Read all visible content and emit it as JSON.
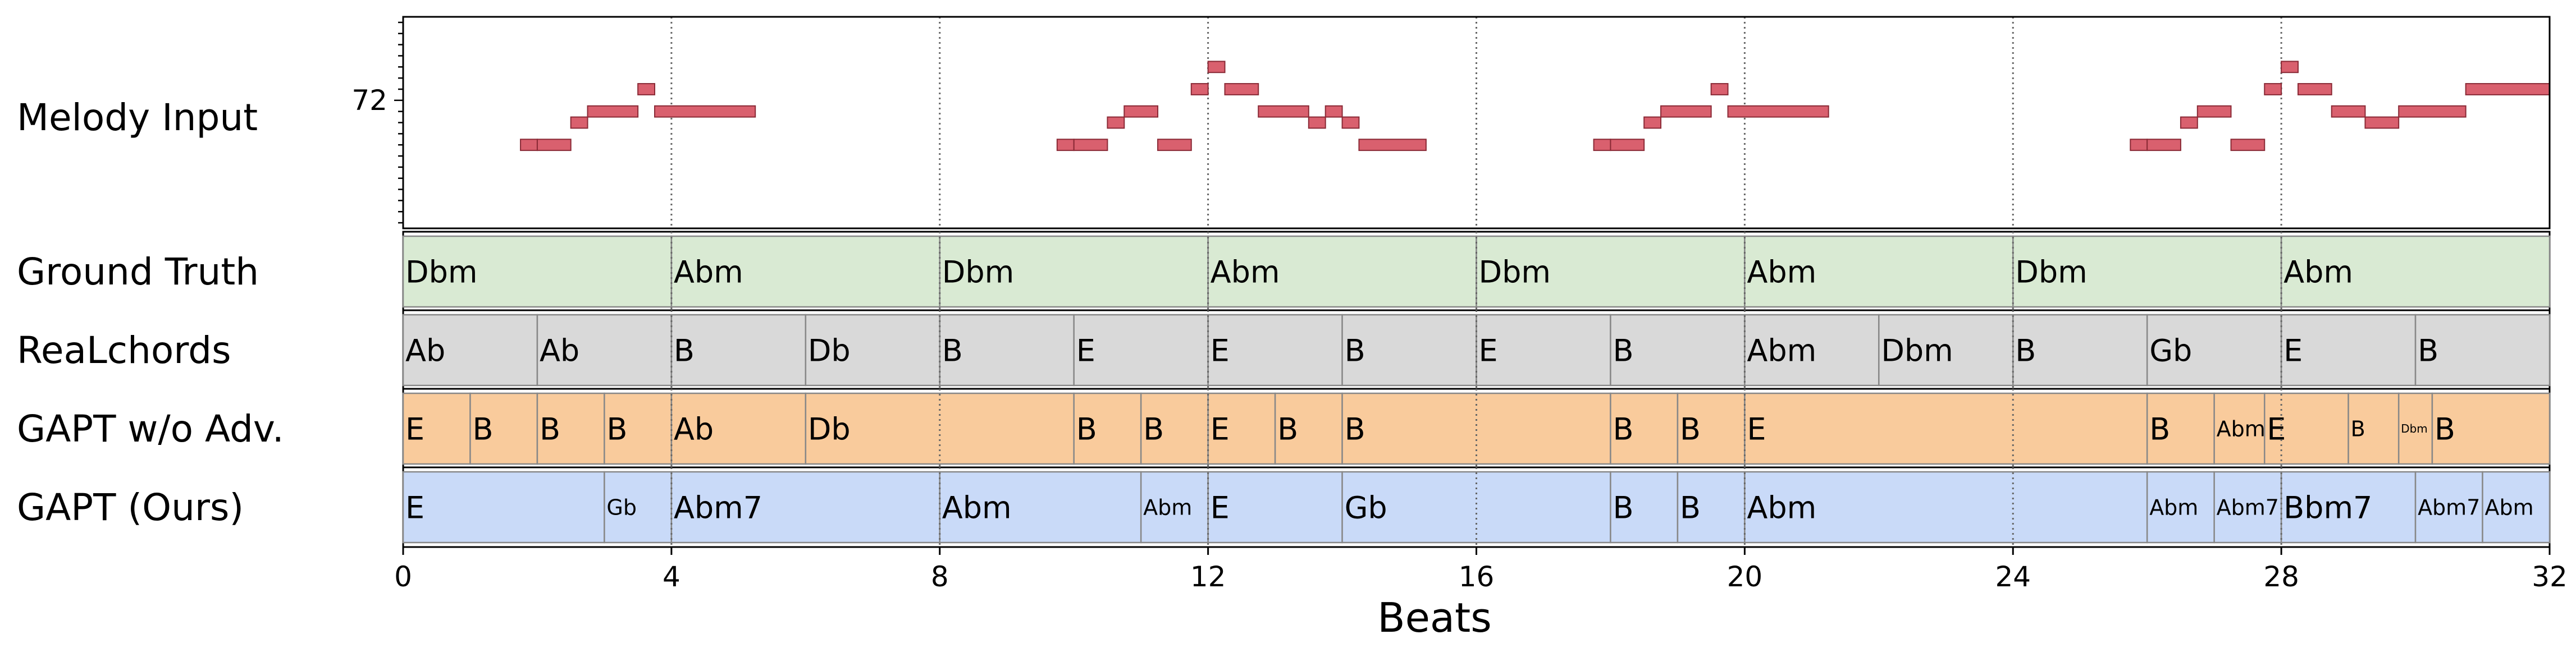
{
  "chart_data": {
    "type": "piano-roll-chord-timeline",
    "xlabel": "Beats",
    "xlim": [
      0,
      32
    ],
    "xticks": [
      0,
      4,
      8,
      12,
      16,
      20,
      24,
      28,
      32
    ],
    "xtick_labels": [
      "0",
      "4",
      "8",
      "12",
      "16",
      "20",
      "24",
      "28",
      "32"
    ],
    "grid": "dotted vertical lines every 4 beats",
    "melody": {
      "label": "Melody Input",
      "ytick": 72,
      "ytick_label": "72",
      "ylim": [
        60.5,
        79.5
      ],
      "color": "#d9606e",
      "notes": [
        {
          "start": 1.75,
          "end": 2.0,
          "pitch": 68
        },
        {
          "start": 2.0,
          "end": 2.5,
          "pitch": 68
        },
        {
          "start": 2.5,
          "end": 2.75,
          "pitch": 70
        },
        {
          "start": 2.75,
          "end": 3.5,
          "pitch": 71
        },
        {
          "start": 3.5,
          "end": 3.75,
          "pitch": 73
        },
        {
          "start": 3.75,
          "end": 5.25,
          "pitch": 71
        },
        {
          "start": 9.75,
          "end": 10.0,
          "pitch": 68
        },
        {
          "start": 10.0,
          "end": 10.5,
          "pitch": 68
        },
        {
          "start": 10.5,
          "end": 10.75,
          "pitch": 70
        },
        {
          "start": 10.75,
          "end": 11.25,
          "pitch": 71
        },
        {
          "start": 11.25,
          "end": 11.75,
          "pitch": 68
        },
        {
          "start": 11.75,
          "end": 12.0,
          "pitch": 73
        },
        {
          "start": 12.0,
          "end": 12.25,
          "pitch": 75
        },
        {
          "start": 12.25,
          "end": 12.75,
          "pitch": 73
        },
        {
          "start": 12.75,
          "end": 13.5,
          "pitch": 71
        },
        {
          "start": 13.5,
          "end": 13.75,
          "pitch": 70
        },
        {
          "start": 13.75,
          "end": 14.0,
          "pitch": 71
        },
        {
          "start": 14.0,
          "end": 14.25,
          "pitch": 70
        },
        {
          "start": 14.25,
          "end": 15.25,
          "pitch": 68
        },
        {
          "start": 17.75,
          "end": 18.0,
          "pitch": 68
        },
        {
          "start": 18.0,
          "end": 18.5,
          "pitch": 68
        },
        {
          "start": 18.5,
          "end": 18.75,
          "pitch": 70
        },
        {
          "start": 18.75,
          "end": 19.5,
          "pitch": 71
        },
        {
          "start": 19.5,
          "end": 19.75,
          "pitch": 73
        },
        {
          "start": 19.75,
          "end": 21.25,
          "pitch": 71
        },
        {
          "start": 25.75,
          "end": 26.0,
          "pitch": 68
        },
        {
          "start": 26.0,
          "end": 26.5,
          "pitch": 68
        },
        {
          "start": 26.5,
          "end": 26.75,
          "pitch": 70
        },
        {
          "start": 26.75,
          "end": 27.25,
          "pitch": 71
        },
        {
          "start": 27.25,
          "end": 27.75,
          "pitch": 68
        },
        {
          "start": 27.75,
          "end": 28.0,
          "pitch": 73
        },
        {
          "start": 28.0,
          "end": 28.25,
          "pitch": 75
        },
        {
          "start": 28.25,
          "end": 28.75,
          "pitch": 73
        },
        {
          "start": 28.75,
          "end": 29.25,
          "pitch": 71
        },
        {
          "start": 29.25,
          "end": 29.75,
          "pitch": 70
        },
        {
          "start": 29.75,
          "end": 30.75,
          "pitch": 71
        },
        {
          "start": 30.75,
          "end": 32.0,
          "pitch": 73
        }
      ]
    },
    "tracks": [
      {
        "name": "Ground Truth",
        "color": "#d9ead3",
        "chords": [
          {
            "start": 0,
            "end": 4,
            "label": "Dbm"
          },
          {
            "start": 4,
            "end": 8,
            "label": "Abm"
          },
          {
            "start": 8,
            "end": 12,
            "label": "Dbm"
          },
          {
            "start": 12,
            "end": 16,
            "label": "Abm"
          },
          {
            "start": 16,
            "end": 20,
            "label": "Dbm"
          },
          {
            "start": 20,
            "end": 24,
            "label": "Abm"
          },
          {
            "start": 24,
            "end": 28,
            "label": "Dbm"
          },
          {
            "start": 28,
            "end": 32,
            "label": "Abm"
          }
        ]
      },
      {
        "name": "ReaLchords",
        "color": "#d9d9d9",
        "chords": [
          {
            "start": 0,
            "end": 2,
            "label": "Ab"
          },
          {
            "start": 2,
            "end": 4,
            "label": "Ab"
          },
          {
            "start": 4,
            "end": 6,
            "label": "B"
          },
          {
            "start": 6,
            "end": 8,
            "label": "Db"
          },
          {
            "start": 8,
            "end": 10,
            "label": "B"
          },
          {
            "start": 10,
            "end": 12,
            "label": "E"
          },
          {
            "start": 12,
            "end": 14,
            "label": "E"
          },
          {
            "start": 14,
            "end": 16,
            "label": "B"
          },
          {
            "start": 16,
            "end": 18,
            "label": "E"
          },
          {
            "start": 18,
            "end": 20,
            "label": "B"
          },
          {
            "start": 20,
            "end": 22,
            "label": "Abm"
          },
          {
            "start": 22,
            "end": 24,
            "label": "Dbm"
          },
          {
            "start": 24,
            "end": 26,
            "label": "B"
          },
          {
            "start": 26,
            "end": 28,
            "label": "Gb"
          },
          {
            "start": 28,
            "end": 30,
            "label": "E"
          },
          {
            "start": 30,
            "end": 32,
            "label": "B"
          }
        ]
      },
      {
        "name": "GAPT w/o Adv.",
        "color": "#f9cb9c",
        "chords": [
          {
            "start": 0,
            "end": 1,
            "label": "E"
          },
          {
            "start": 1,
            "end": 2,
            "label": "B"
          },
          {
            "start": 2,
            "end": 3,
            "label": "B"
          },
          {
            "start": 3,
            "end": 4,
            "label": "B"
          },
          {
            "start": 4,
            "end": 6,
            "label": "Ab"
          },
          {
            "start": 6,
            "end": 10,
            "label": "Db"
          },
          {
            "start": 10,
            "end": 11,
            "label": "B"
          },
          {
            "start": 11,
            "end": 12,
            "label": "B"
          },
          {
            "start": 12,
            "end": 13,
            "label": "E"
          },
          {
            "start": 13,
            "end": 14,
            "label": "B"
          },
          {
            "start": 14,
            "end": 18,
            "label": "B"
          },
          {
            "start": 18,
            "end": 19,
            "label": "B"
          },
          {
            "start": 19,
            "end": 20,
            "label": "B"
          },
          {
            "start": 20,
            "end": 26,
            "label": "E"
          },
          {
            "start": 26,
            "end": 27,
            "label": "B"
          },
          {
            "start": 27,
            "end": 27.75,
            "label": "Abm",
            "small": true
          },
          {
            "start": 27.75,
            "end": 29,
            "label": "E"
          },
          {
            "start": 29,
            "end": 29.75,
            "label": "B",
            "small": true
          },
          {
            "start": 29.75,
            "end": 30.25,
            "label": "Dbm",
            "tiny": true
          },
          {
            "start": 30.25,
            "end": 32,
            "label": "B"
          }
        ]
      },
      {
        "name": "GAPT (Ours)",
        "color": "#c9daf8",
        "chords": [
          {
            "start": 0,
            "end": 3,
            "label": "E"
          },
          {
            "start": 3,
            "end": 4,
            "label": "Gb",
            "small": true
          },
          {
            "start": 4,
            "end": 8,
            "label": "Abm7"
          },
          {
            "start": 8,
            "end": 11,
            "label": "Abm"
          },
          {
            "start": 11,
            "end": 12,
            "label": "Abm",
            "small": true
          },
          {
            "start": 12,
            "end": 14,
            "label": "E"
          },
          {
            "start": 14,
            "end": 18,
            "label": "Gb"
          },
          {
            "start": 18,
            "end": 19,
            "label": "B"
          },
          {
            "start": 19,
            "end": 20,
            "label": "B"
          },
          {
            "start": 20,
            "end": 26,
            "label": "Abm"
          },
          {
            "start": 26,
            "end": 27,
            "label": "Abm",
            "small": true
          },
          {
            "start": 27,
            "end": 28,
            "label": "Abm7",
            "small": true
          },
          {
            "start": 28,
            "end": 30,
            "label": "Bbm7"
          },
          {
            "start": 30,
            "end": 31,
            "label": "Abm7",
            "small": true
          },
          {
            "start": 31,
            "end": 32,
            "label": "Abm",
            "small": true
          }
        ]
      }
    ]
  }
}
